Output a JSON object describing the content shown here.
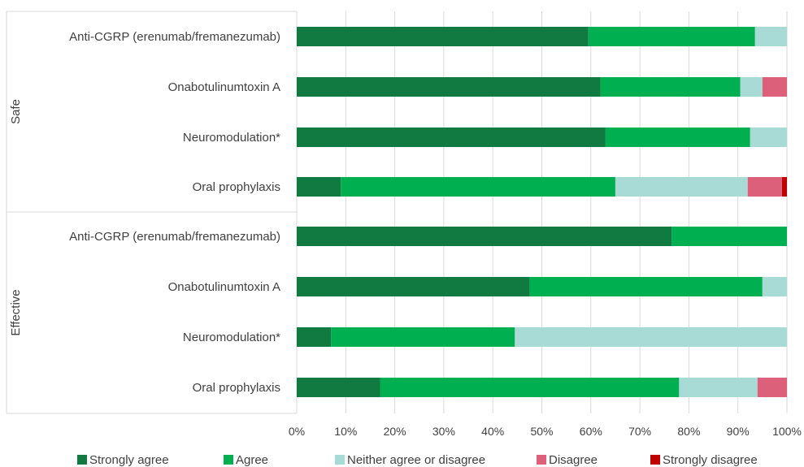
{
  "chart_data": {
    "type": "bar",
    "orientation": "horizontal",
    "stacked": true,
    "groups": [
      {
        "name": "Safe",
        "categories": [
          "Anti-CGRP (erenumab/fremanezumab)",
          "Onabotulinumtoxin A",
          "Neuromodulation*",
          "Oral prophylaxis"
        ]
      },
      {
        "name": "Effective",
        "categories": [
          "Anti-CGRP (erenumab/fremanezumab)",
          "Onabotulinumtoxin A",
          "Neuromodulation*",
          "Oral prophylaxis"
        ]
      }
    ],
    "series": [
      {
        "name": "Strongly agree",
        "color": "#107a40",
        "values": [
          59.5,
          62,
          63,
          9,
          76.5,
          47.5,
          7,
          17
        ]
      },
      {
        "name": "Agree",
        "color": "#00b050",
        "values": [
          34,
          28.5,
          29.5,
          56,
          23.5,
          47.5,
          37.5,
          61
        ]
      },
      {
        "name": "Neither agree or disagree",
        "color": "#a9dbd6",
        "values": [
          6.5,
          4.5,
          7.5,
          27,
          0,
          5,
          55.5,
          16
        ]
      },
      {
        "name": "Disagree",
        "color": "#dc6079",
        "values": [
          0,
          5,
          0,
          7,
          0,
          0,
          0,
          6
        ]
      },
      {
        "name": "Strongly disagree",
        "color": "#c00000",
        "values": [
          0,
          0,
          0,
          1,
          0,
          0,
          0,
          0
        ]
      }
    ],
    "xaxis": {
      "ticks": [
        "0%",
        "10%",
        "20%",
        "30%",
        "40%",
        "50%",
        "60%",
        "70%",
        "80%",
        "90%",
        "100%"
      ],
      "range": [
        0,
        100
      ]
    },
    "grid": true,
    "legend_position": "bottom"
  }
}
